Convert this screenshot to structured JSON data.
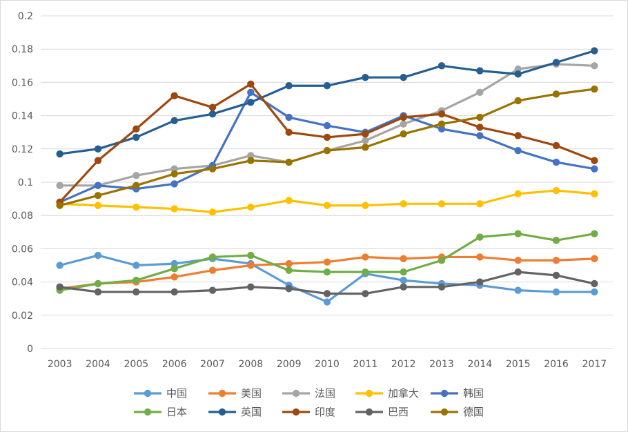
{
  "chart_data": {
    "type": "line",
    "title": "",
    "xlabel": "",
    "ylabel": "",
    "categories": [
      "2003",
      "2004",
      "2005",
      "2006",
      "2007",
      "2008",
      "2009",
      "2010",
      "2011",
      "2012",
      "2013",
      "2014",
      "2015",
      "2016",
      "2017"
    ],
    "ylim": [
      0,
      0.2
    ],
    "yticks": [
      "0",
      "0.02",
      "0.04",
      "0.06",
      "0.08",
      "0.1",
      "0.12",
      "0.14",
      "0.16",
      "0.18",
      "0.2"
    ],
    "grid": true,
    "legend_position": "bottom",
    "series": [
      {
        "name": "中国",
        "color": "#5b9bd5",
        "values": [
          0.05,
          0.056,
          0.05,
          0.051,
          0.054,
          0.051,
          0.038,
          0.028,
          0.045,
          0.041,
          0.039,
          0.038,
          0.035,
          0.034,
          0.034
        ]
      },
      {
        "name": "美国",
        "color": "#ed7d31",
        "values": [
          0.036,
          0.039,
          0.04,
          0.043,
          0.047,
          0.05,
          0.051,
          0.052,
          0.055,
          0.054,
          0.055,
          0.055,
          0.053,
          0.053,
          0.054
        ]
      },
      {
        "name": "法国",
        "color": "#a5a5a5",
        "values": [
          0.098,
          0.098,
          0.104,
          0.108,
          0.11,
          0.116,
          0.112,
          0.119,
          0.125,
          0.135,
          0.143,
          0.154,
          0.168,
          0.171,
          0.17
        ]
      },
      {
        "name": "加拿大",
        "color": "#ffc000",
        "values": [
          0.087,
          0.086,
          0.085,
          0.084,
          0.082,
          0.085,
          0.089,
          0.086,
          0.086,
          0.087,
          0.087,
          0.087,
          0.093,
          0.095,
          0.093
        ]
      },
      {
        "name": "韩国",
        "color": "#4472c4",
        "values": [
          0.088,
          0.098,
          0.096,
          0.099,
          0.11,
          0.154,
          0.139,
          0.134,
          0.13,
          0.14,
          0.132,
          0.128,
          0.119,
          0.112,
          0.108
        ]
      },
      {
        "name": "日本",
        "color": "#70ad47",
        "values": [
          0.035,
          0.039,
          0.041,
          0.048,
          0.055,
          0.056,
          0.047,
          0.046,
          0.046,
          0.046,
          0.053,
          0.067,
          0.069,
          0.065,
          0.069
        ]
      },
      {
        "name": "英国",
        "color": "#255e91",
        "values": [
          0.117,
          0.12,
          0.127,
          0.137,
          0.141,
          0.148,
          0.158,
          0.158,
          0.163,
          0.163,
          0.17,
          0.167,
          0.165,
          0.172,
          0.179
        ]
      },
      {
        "name": "印度",
        "color": "#9e480e",
        "values": [
          0.088,
          0.113,
          0.132,
          0.152,
          0.145,
          0.159,
          0.13,
          0.127,
          0.129,
          0.139,
          0.141,
          0.133,
          0.128,
          0.122,
          0.113
        ]
      },
      {
        "name": "巴西",
        "color": "#636363",
        "values": [
          0.037,
          0.034,
          0.034,
          0.034,
          0.035,
          0.037,
          0.036,
          0.033,
          0.033,
          0.037,
          0.037,
          0.04,
          0.046,
          0.044,
          0.039
        ]
      },
      {
        "name": "德国",
        "color": "#997300",
        "values": [
          0.086,
          0.092,
          0.098,
          0.105,
          0.108,
          0.113,
          0.112,
          0.119,
          0.121,
          0.129,
          0.135,
          0.139,
          0.149,
          0.153,
          0.156
        ]
      }
    ]
  }
}
